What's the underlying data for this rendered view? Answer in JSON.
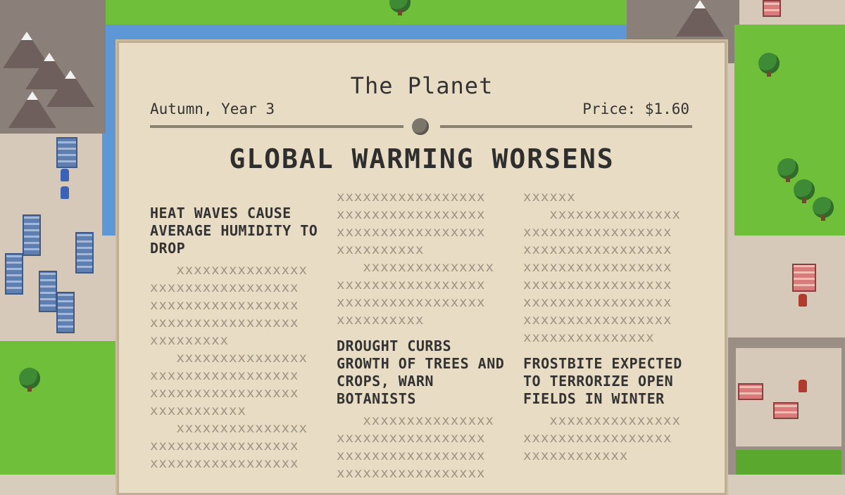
{
  "newspaper": {
    "masthead": "The Planet",
    "dateline": "Autumn, Year 3",
    "price": "Price: $1.60",
    "headline": "GLOBAL WARMING WORSENS",
    "columns": [
      {
        "top_filler": [],
        "story1_title": "HEAT WAVES CAUSE AVERAGE HUMIDITY TO DROP",
        "story1_filler": [
          "   xxxxxxxxxxxxxxx",
          "xxxxxxxxxxxxxxxxx",
          "xxxxxxxxxxxxxxxxx",
          "xxxxxxxxxxxxxxxxx",
          "xxxxxxxxx",
          "   xxxxxxxxxxxxxxx",
          "xxxxxxxxxxxxxxxxx",
          "xxxxxxxxxxxxxxxxx",
          "xxxxxxxxxxx",
          "   xxxxxxxxxxxxxxx",
          "xxxxxxxxxxxxxxxxx",
          "xxxxxxxxxxxxxxxxx"
        ]
      },
      {
        "top_filler": [
          "xxxxxxxxxxxxxxxxx",
          "xxxxxxxxxxxxxxxxx",
          "xxxxxxxxxxxxxxxxx",
          "xxxxxxxxxx",
          "   xxxxxxxxxxxxxxx",
          "xxxxxxxxxxxxxxxxx",
          "xxxxxxxxxxxxxxxxx",
          "xxxxxxxxxx"
        ],
        "story_title": "DROUGHT CURBS GROWTH OF TREES AND CROPS, WARN BOTANISTS",
        "story_filler": [
          "   xxxxxxxxxxxxxxx",
          "xxxxxxxxxxxxxxxxx",
          "xxxxxxxxxxxxxxxxx",
          "xxxxxxxxxxxxxxxxx"
        ]
      },
      {
        "top_filler": [
          "xxxxxx",
          "   xxxxxxxxxxxxxxx",
          "xxxxxxxxxxxxxxxxx",
          "xxxxxxxxxxxxxxxxx",
          "xxxxxxxxxxxxxxxxx",
          "xxxxxxxxxxxxxxxxx",
          "xxxxxxxxxxxxxxxxx",
          "xxxxxxxxxxxxxxxxx",
          "xxxxxxxxxxxxxxx"
        ],
        "story_title": "FROSTBITE EXPECTED TO TERRORIZE OPEN FIELDS IN WINTER",
        "story_filler": [
          "   xxxxxxxxxxxxxxx",
          "xxxxxxxxxxxxxxxxx",
          "xxxxxxxxxxxx"
        ]
      }
    ]
  }
}
